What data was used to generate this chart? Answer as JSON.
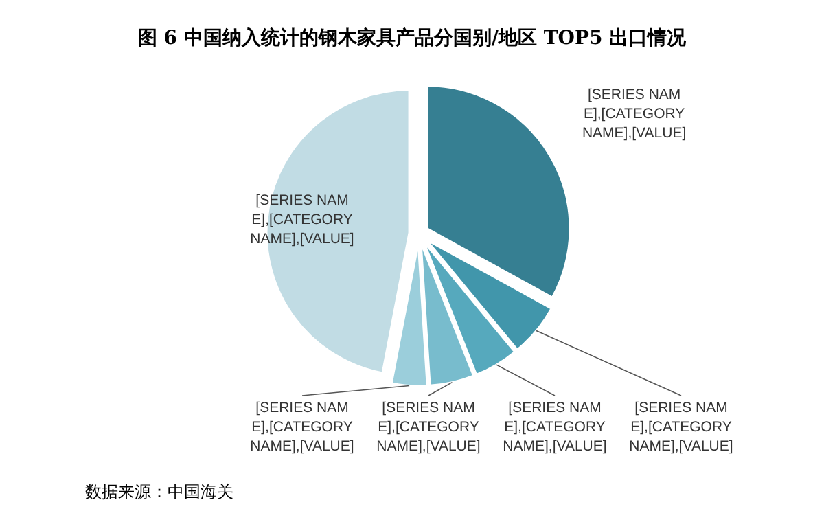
{
  "chart_data": {
    "type": "pie",
    "title": "图 6 中国纳入统计的钢木家具产品分国别/地区 TOP5 出口情况",
    "categories": [
      "[SERIES NAME],[CATEGORY NAME],[VALUE]",
      "[SERIES NAME],[CATEGORY NAME],[VALUE]",
      "[SERIES NAME],[CATEGORY NAME],[VALUE]",
      "[SERIES NAME],[CATEGORY NAME],[VALUE]",
      "[SERIES NAME],[CATEGORY NAME],[VALUE]",
      "[SERIES NAME],[CATEGORY NAME],[VALUE]"
    ],
    "values": [
      33,
      6,
      5,
      5,
      4,
      47
    ],
    "colors": [
      "#367f92",
      "#4196ab",
      "#56a9bd",
      "#78bccd",
      "#9bcedb",
      "#c1dce4"
    ],
    "annotations": [
      "数据来源：中国海关"
    ]
  }
}
